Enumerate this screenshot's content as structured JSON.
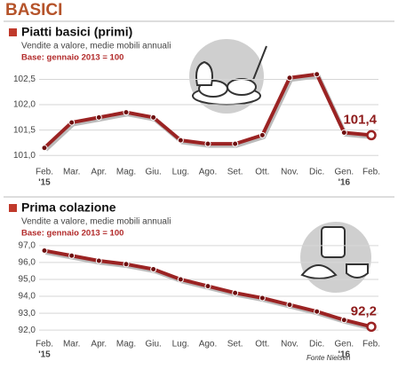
{
  "header": {
    "title": "BASICI"
  },
  "footer": {
    "source": "Fonte Nielsen"
  },
  "chart_data": [
    {
      "type": "line",
      "title": "Piatti basici (primi)",
      "subtitle": "Vendite a valore, medie mobili annuali",
      "note": "Base: gennaio 2013 = 100",
      "categories": [
        "Feb.",
        "Mar.",
        "Apr.",
        "Mag.",
        "Giu.",
        "Lug.",
        "Ago.",
        "Set.",
        "Ott.",
        "Nov.",
        "Dic.",
        "Gen.",
        "Feb."
      ],
      "year_labels": [
        "'15",
        null,
        null,
        null,
        null,
        null,
        null,
        null,
        null,
        null,
        null,
        "'16",
        null
      ],
      "values": [
        101.15,
        101.65,
        101.75,
        101.85,
        101.75,
        101.3,
        101.23,
        101.23,
        101.4,
        102.53,
        102.6,
        101.45,
        101.4
      ],
      "value_labels": [
        null,
        null,
        null,
        null,
        null,
        null,
        null,
        null,
        null,
        null,
        null,
        null,
        "101,4"
      ],
      "color": "#9b2323",
      "ylim": [
        100.9,
        102.7
      ],
      "yticks": [
        {
          "value": 101,
          "label": "101,0"
        },
        {
          "value": 101.5,
          "label": "101,5"
        },
        {
          "value": 102,
          "label": "102,0"
        },
        {
          "value": 102.5,
          "label": "102,5"
        }
      ],
      "grid": true
    },
    {
      "type": "line",
      "title": "Prima colazione",
      "subtitle": "Vendite a valore, medie mobili annuali",
      "note": "Base: gennaio 2013 = 100",
      "categories": [
        "Feb.",
        "Mar.",
        "Apr.",
        "Mag.",
        "Giu.",
        "Lug.",
        "Ago.",
        "Set.",
        "Ott.",
        "Nov.",
        "Dic.",
        "Gen.",
        "Feb."
      ],
      "year_labels": [
        "'15",
        null,
        null,
        null,
        null,
        null,
        null,
        null,
        null,
        null,
        null,
        "'16",
        null
      ],
      "values": [
        96.7,
        96.4,
        96.1,
        95.9,
        95.6,
        95.0,
        94.6,
        94.2,
        93.9,
        93.5,
        93.1,
        92.6,
        92.2
      ],
      "value_labels": [
        null,
        null,
        null,
        null,
        null,
        null,
        null,
        null,
        null,
        null,
        null,
        null,
        "92,2"
      ],
      "color": "#9b2323",
      "ylim": [
        91.8,
        97.2
      ],
      "yticks": [
        {
          "value": 92,
          "label": "92,0"
        },
        {
          "value": 93,
          "label": "93,0"
        },
        {
          "value": 94,
          "label": "94,0"
        },
        {
          "value": 95,
          "label": "95,0"
        },
        {
          "value": 96,
          "label": "96,0"
        },
        {
          "value": 97,
          "label": "97,0"
        }
      ],
      "grid": true
    }
  ]
}
